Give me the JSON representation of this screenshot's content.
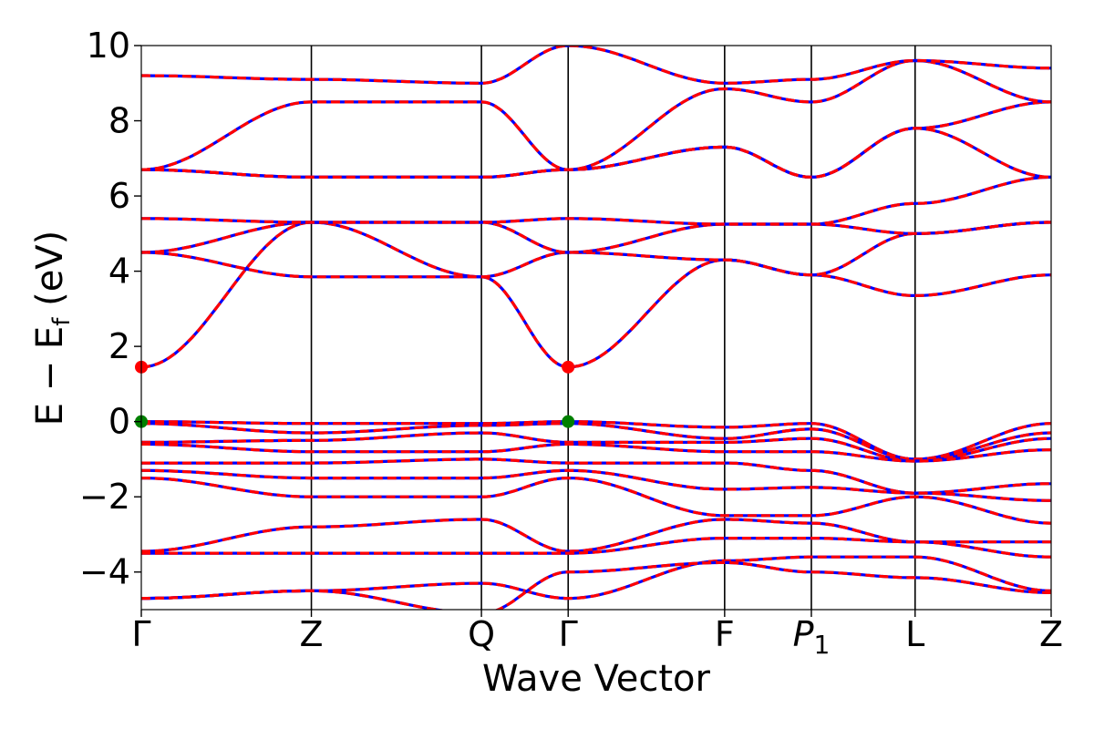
{
  "chart_data": {
    "type": "line",
    "title": "",
    "xlabel": "Wave Vector",
    "ylabel": "E − E_f (eV)",
    "ylabel_parts": {
      "main": "E − E",
      "sub": "f",
      "unit": " (eV)"
    },
    "ylim": [
      -5,
      10
    ],
    "xlim": [
      0,
      5.35
    ],
    "grid": false,
    "legend": "none",
    "y_ticks": [
      -4,
      -2,
      0,
      2,
      4,
      6,
      8,
      10
    ],
    "y_tick_labels": [
      "−4",
      "−2",
      "0",
      "2",
      "4",
      "6",
      "8",
      "10"
    ],
    "high_symmetry_points": [
      {
        "label": "Γ",
        "x": 0.0
      },
      {
        "label": "Z",
        "x": 1.0
      },
      {
        "label": "Q",
        "x": 2.0
      },
      {
        "label": "Γ",
        "x": 2.51
      },
      {
        "label": "F",
        "x": 3.43
      },
      {
        "label": "P",
        "sub": "1",
        "x": 3.94
      },
      {
        "label": "L",
        "x": 4.55
      },
      {
        "label": "Z",
        "x": 5.35
      }
    ],
    "band_colors": {
      "dft": "#0000ff",
      "wannier": "#ff0000"
    },
    "band_style": {
      "dft": "solid",
      "wannier": "dashed"
    },
    "special_markers": [
      {
        "name": "CBM",
        "x": 0.0,
        "y": 1.45,
        "color": "#ff0000"
      },
      {
        "name": "CBM",
        "x": 2.51,
        "y": 1.45,
        "color": "#ff0000"
      },
      {
        "name": "VBM",
        "x": 0.0,
        "y": 0.0,
        "color": "#008000"
      },
      {
        "name": "VBM",
        "x": 2.51,
        "y": 0.0,
        "color": "#008000"
      }
    ],
    "series": [
      {
        "values_at_points": [
          1.45,
          5.3,
          3.85,
          1.45,
          4.3,
          3.9,
          3.35,
          3.9
        ]
      },
      {
        "values_at_points": [
          4.5,
          3.85,
          3.85,
          4.5,
          4.3,
          3.9,
          5.0,
          5.3
        ]
      },
      {
        "values_at_points": [
          4.5,
          5.3,
          5.3,
          4.5,
          5.25,
          5.25,
          5.0,
          5.3
        ]
      },
      {
        "values_at_points": [
          5.4,
          5.3,
          5.3,
          5.4,
          5.25,
          5.25,
          5.8,
          6.5
        ]
      },
      {
        "values_at_points": [
          6.7,
          6.5,
          6.5,
          6.7,
          7.3,
          6.5,
          7.8,
          6.5
        ]
      },
      {
        "values_at_points": [
          6.7,
          6.5,
          6.5,
          6.7,
          7.3,
          6.5,
          7.8,
          8.5
        ]
      },
      {
        "values_at_points": [
          6.7,
          8.5,
          8.5,
          6.7,
          8.85,
          8.5,
          9.6,
          8.5
        ]
      },
      {
        "values_at_points": [
          9.2,
          9.1,
          9.0,
          10.0,
          9.0,
          9.1,
          9.6,
          9.4
        ]
      },
      {
        "values_at_points": [
          0.0,
          -0.05,
          -0.05,
          0.0,
          -0.15,
          -0.05,
          -1.0,
          -0.05
        ]
      },
      {
        "values_at_points": [
          -0.05,
          -0.3,
          -0.1,
          -0.05,
          -0.45,
          -0.2,
          -1.0,
          -0.3
        ]
      },
      {
        "values_at_points": [
          -0.55,
          -0.5,
          -0.3,
          -0.55,
          -0.55,
          -0.45,
          -1.05,
          -0.45
        ]
      },
      {
        "values_at_points": [
          -0.6,
          -0.8,
          -0.8,
          -0.6,
          -0.8,
          -0.8,
          -1.05,
          -0.75
        ]
      },
      {
        "values_at_points": [
          -1.1,
          -1.1,
          -1.0,
          -1.1,
          -1.1,
          -1.3,
          -1.9,
          -1.65
        ]
      },
      {
        "values_at_points": [
          -1.3,
          -1.5,
          -1.5,
          -1.3,
          -1.8,
          -1.75,
          -1.9,
          -2.1
        ]
      },
      {
        "values_at_points": [
          -1.5,
          -2.0,
          -2.0,
          -1.5,
          -2.5,
          -2.5,
          -2.0,
          -2.7
        ]
      },
      {
        "values_at_points": [
          -3.45,
          -2.8,
          -2.6,
          -3.45,
          -2.6,
          -2.7,
          -3.2,
          -3.2
        ]
      },
      {
        "values_at_points": [
          -3.5,
          -3.5,
          -3.5,
          -3.5,
          -3.1,
          -3.1,
          -3.2,
          -3.6
        ]
      },
      {
        "values_at_points": [
          -4.7,
          -4.5,
          -4.3,
          -4.7,
          -3.7,
          -3.6,
          -3.6,
          -4.5
        ]
      },
      {
        "values_at_points": [
          -4.7,
          -4.5,
          -5.1,
          -4.0,
          -3.75,
          -4.0,
          -4.15,
          -4.55
        ]
      }
    ]
  }
}
